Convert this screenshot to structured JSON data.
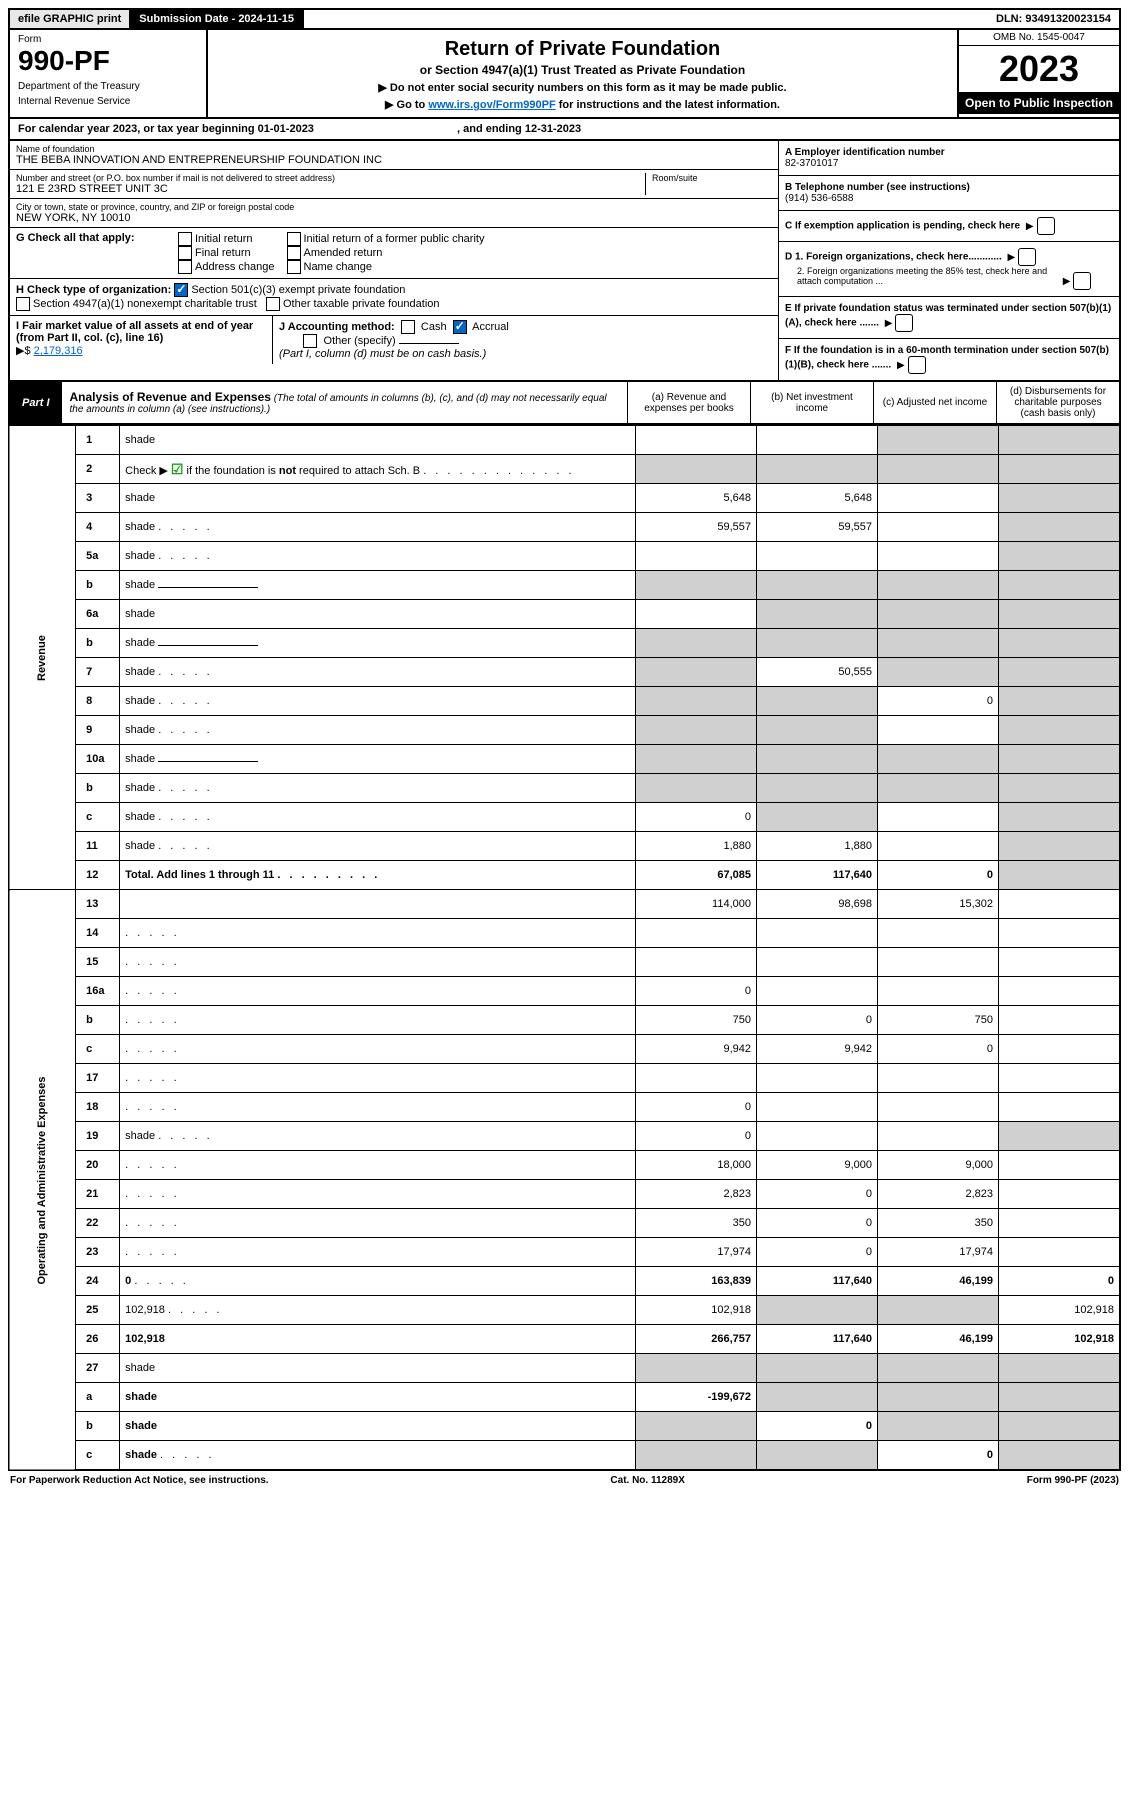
{
  "topbar": {
    "efile": "efile GRAPHIC print",
    "submission_label": "Submission Date - 2024-11-15",
    "dln": "DLN: 93491320023154"
  },
  "header": {
    "form_word": "Form",
    "form_num": "990-PF",
    "dept": "Department of the Treasury",
    "irs": "Internal Revenue Service",
    "title": "Return of Private Foundation",
    "subtitle": "or Section 4947(a)(1) Trust Treated as Private Foundation",
    "instr1": "▶ Do not enter social security numbers on this form as it may be made public.",
    "instr2_pre": "▶ Go to ",
    "instr2_link": "www.irs.gov/Form990PF",
    "instr2_post": " for instructions and the latest information.",
    "omb": "OMB No. 1545-0047",
    "year": "2023",
    "open": "Open to Public Inspection"
  },
  "cal": {
    "text_pre": "For calendar year 2023, or tax year beginning ",
    "begin": "01-01-2023",
    "mid": " , and ending ",
    "end": "12-31-2023"
  },
  "info": {
    "name_lbl": "Name of foundation",
    "name": "THE BEBA INNOVATION AND ENTREPRENEURSHIP FOUNDATION INC",
    "addr_lbl": "Number and street (or P.O. box number if mail is not delivered to street address)",
    "addr": "121 E 23RD STREET UNIT 3C",
    "room_lbl": "Room/suite",
    "city_lbl": "City or town, state or province, country, and ZIP or foreign postal code",
    "city": "NEW YORK, NY  10010",
    "a_lbl": "A Employer identification number",
    "ein": "82-3701017",
    "b_lbl": "B Telephone number (see instructions)",
    "phone": "(914) 536-6588",
    "c_lbl": "C If exemption application is pending, check here",
    "d1": "D 1. Foreign organizations, check here............",
    "d2": "2. Foreign organizations meeting the 85% test, check here and attach computation ...",
    "e": "E  If private foundation status was terminated under section 507(b)(1)(A), check here .......",
    "f": "F  If the foundation is in a 60-month termination under section 507(b)(1)(B), check here .......",
    "g_lbl": "G Check all that apply:",
    "g_opts": [
      "Initial return",
      "Final return",
      "Address change",
      "Initial return of a former public charity",
      "Amended return",
      "Name change"
    ],
    "h_lbl": "H Check type of organization:",
    "h1": "Section 501(c)(3) exempt private foundation",
    "h2": "Section 4947(a)(1) nonexempt charitable trust",
    "h3": "Other taxable private foundation",
    "i_lbl": "I Fair market value of all assets at end of year (from Part II, col. (c), line 16)",
    "i_val": "2,179,316",
    "j_lbl": "J Accounting method:",
    "j1": "Cash",
    "j2": "Accrual",
    "j3": "Other (specify)",
    "j_note": "(Part I, column (d) must be on cash basis.)"
  },
  "part1": {
    "label": "Part I",
    "title": "Analysis of Revenue and Expenses",
    "note": "(The total of amounts in columns (b), (c), and (d) may not necessarily equal the amounts in column (a) (see instructions).)",
    "cols": {
      "a": "(a)  Revenue and expenses per books",
      "b": "(b)  Net investment income",
      "c": "(c)  Adjusted net income",
      "d": "(d)  Disbursements for charitable purposes (cash basis only)"
    }
  },
  "sections": {
    "rev": "Revenue",
    "ops": "Operating and Administrative Expenses"
  },
  "rows": [
    {
      "n": "1",
      "d": "shade",
      "a": "",
      "b": "",
      "c": "shade"
    },
    {
      "n": "2",
      "d": "shade",
      "dotted": true,
      "a": "shade",
      "b": "shade",
      "c": "shade",
      "green": true
    },
    {
      "n": "3",
      "d": "shade",
      "a": "5,648",
      "b": "5,648",
      "c": ""
    },
    {
      "n": "4",
      "d": "shade",
      "dotted": true,
      "a": "59,557",
      "b": "59,557",
      "c": ""
    },
    {
      "n": "5a",
      "d": "shade",
      "dotted": true,
      "a": "",
      "b": "",
      "c": ""
    },
    {
      "n": "b",
      "d": "shade",
      "under": true,
      "a": "shade",
      "b": "shade",
      "c": "shade"
    },
    {
      "n": "6a",
      "d": "shade",
      "a": "",
      "b": "shade",
      "c": "shade"
    },
    {
      "n": "b",
      "d": "shade",
      "under": true,
      "a": "shade",
      "b": "shade",
      "c": "shade"
    },
    {
      "n": "7",
      "d": "shade",
      "dotted": true,
      "a": "shade",
      "b": "50,555",
      "c": "shade"
    },
    {
      "n": "8",
      "d": "shade",
      "dotted": true,
      "a": "shade",
      "b": "shade",
      "c": "0"
    },
    {
      "n": "9",
      "d": "shade",
      "dotted": true,
      "a": "shade",
      "b": "shade",
      "c": ""
    },
    {
      "n": "10a",
      "d": "shade",
      "under": true,
      "a": "shade",
      "b": "shade",
      "c": "shade"
    },
    {
      "n": "b",
      "d": "shade",
      "dotted": true,
      "under": true,
      "a": "shade",
      "b": "shade",
      "c": "shade"
    },
    {
      "n": "c",
      "d": "shade",
      "dotted": true,
      "a": "0",
      "b": "shade",
      "c": ""
    },
    {
      "n": "11",
      "d": "shade",
      "dotted": true,
      "a": "1,880",
      "b": "1,880",
      "c": ""
    },
    {
      "n": "12",
      "d": "shade",
      "dotted": true,
      "bold": true,
      "a": "67,085",
      "b": "117,640",
      "c": "0"
    },
    {
      "n": "13",
      "d": "",
      "a": "114,000",
      "b": "98,698",
      "c": "15,302"
    },
    {
      "n": "14",
      "d": "",
      "dotted": true,
      "a": "",
      "b": "",
      "c": ""
    },
    {
      "n": "15",
      "d": "",
      "dotted": true,
      "a": "",
      "b": "",
      "c": ""
    },
    {
      "n": "16a",
      "d": "",
      "dotted": true,
      "a": "0",
      "b": "",
      "c": ""
    },
    {
      "n": "b",
      "d": "",
      "dotted": true,
      "a": "750",
      "b": "0",
      "c": "750"
    },
    {
      "n": "c",
      "d": "",
      "dotted": true,
      "a": "9,942",
      "b": "9,942",
      "c": "0"
    },
    {
      "n": "17",
      "d": "",
      "dotted": true,
      "a": "",
      "b": "",
      "c": ""
    },
    {
      "n": "18",
      "d": "",
      "dotted": true,
      "a": "0",
      "b": "",
      "c": ""
    },
    {
      "n": "19",
      "d": "shade",
      "dotted": true,
      "a": "0",
      "b": "",
      "c": ""
    },
    {
      "n": "20",
      "d": "",
      "dotted": true,
      "a": "18,000",
      "b": "9,000",
      "c": "9,000"
    },
    {
      "n": "21",
      "d": "",
      "dotted": true,
      "a": "2,823",
      "b": "0",
      "c": "2,823"
    },
    {
      "n": "22",
      "d": "",
      "dotted": true,
      "a": "350",
      "b": "0",
      "c": "350"
    },
    {
      "n": "23",
      "d": "",
      "dotted": true,
      "a": "17,974",
      "b": "0",
      "c": "17,974"
    },
    {
      "n": "24",
      "d": "0",
      "dotted": true,
      "bold": true,
      "a": "163,839",
      "b": "117,640",
      "c": "46,199"
    },
    {
      "n": "25",
      "d": "102,918",
      "dotted": true,
      "a": "102,918",
      "b": "shade",
      "c": "shade"
    },
    {
      "n": "26",
      "d": "102,918",
      "bold": true,
      "a": "266,757",
      "b": "117,640",
      "c": "46,199"
    },
    {
      "n": "27",
      "d": "shade",
      "a": "shade",
      "b": "shade",
      "c": "shade"
    },
    {
      "n": "a",
      "d": "shade",
      "bold": true,
      "a": "-199,672",
      "b": "shade",
      "c": "shade"
    },
    {
      "n": "b",
      "d": "shade",
      "bold": true,
      "a": "shade",
      "b": "0",
      "c": "shade"
    },
    {
      "n": "c",
      "d": "shade",
      "dotted": true,
      "bold": true,
      "a": "shade",
      "b": "shade",
      "c": "0"
    }
  ],
  "footer": {
    "left": "For Paperwork Reduction Act Notice, see instructions.",
    "mid": "Cat. No. 11289X",
    "right": "Form 990-PF (2023)"
  }
}
